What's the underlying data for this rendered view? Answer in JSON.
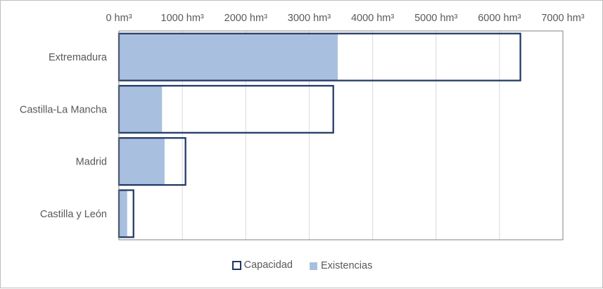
{
  "chart_data": {
    "type": "bar",
    "orientation": "horizontal",
    "title": "",
    "xlabel": "",
    "ylabel": "",
    "unit": "hm³",
    "categories": [
      "Extremadura",
      "Castilla-La Mancha",
      "Madrid",
      "Castilla y León"
    ],
    "series": [
      {
        "name": "Capacidad",
        "values": [
          6330,
          3380,
          1050,
          230
        ],
        "color": "#1f3864",
        "style": "outline"
      },
      {
        "name": "Existencias",
        "values": [
          3450,
          680,
          720,
          130
        ],
        "color": "#a9bfdf",
        "style": "fill"
      }
    ],
    "xlim": [
      0,
      7000
    ],
    "ticks": [
      "0 hm³",
      "1000 hm³",
      "2000 hm³",
      "3000 hm³",
      "4000 hm³",
      "5000 hm³",
      "6000 hm³",
      "7000 hm³"
    ],
    "tick_values": [
      0,
      1000,
      2000,
      3000,
      4000,
      5000,
      6000,
      7000
    ],
    "axis_position": "top",
    "grid": true,
    "legend_position": "bottom"
  },
  "legend": {
    "capacidad": "Capacidad",
    "existencias": "Existencias"
  }
}
